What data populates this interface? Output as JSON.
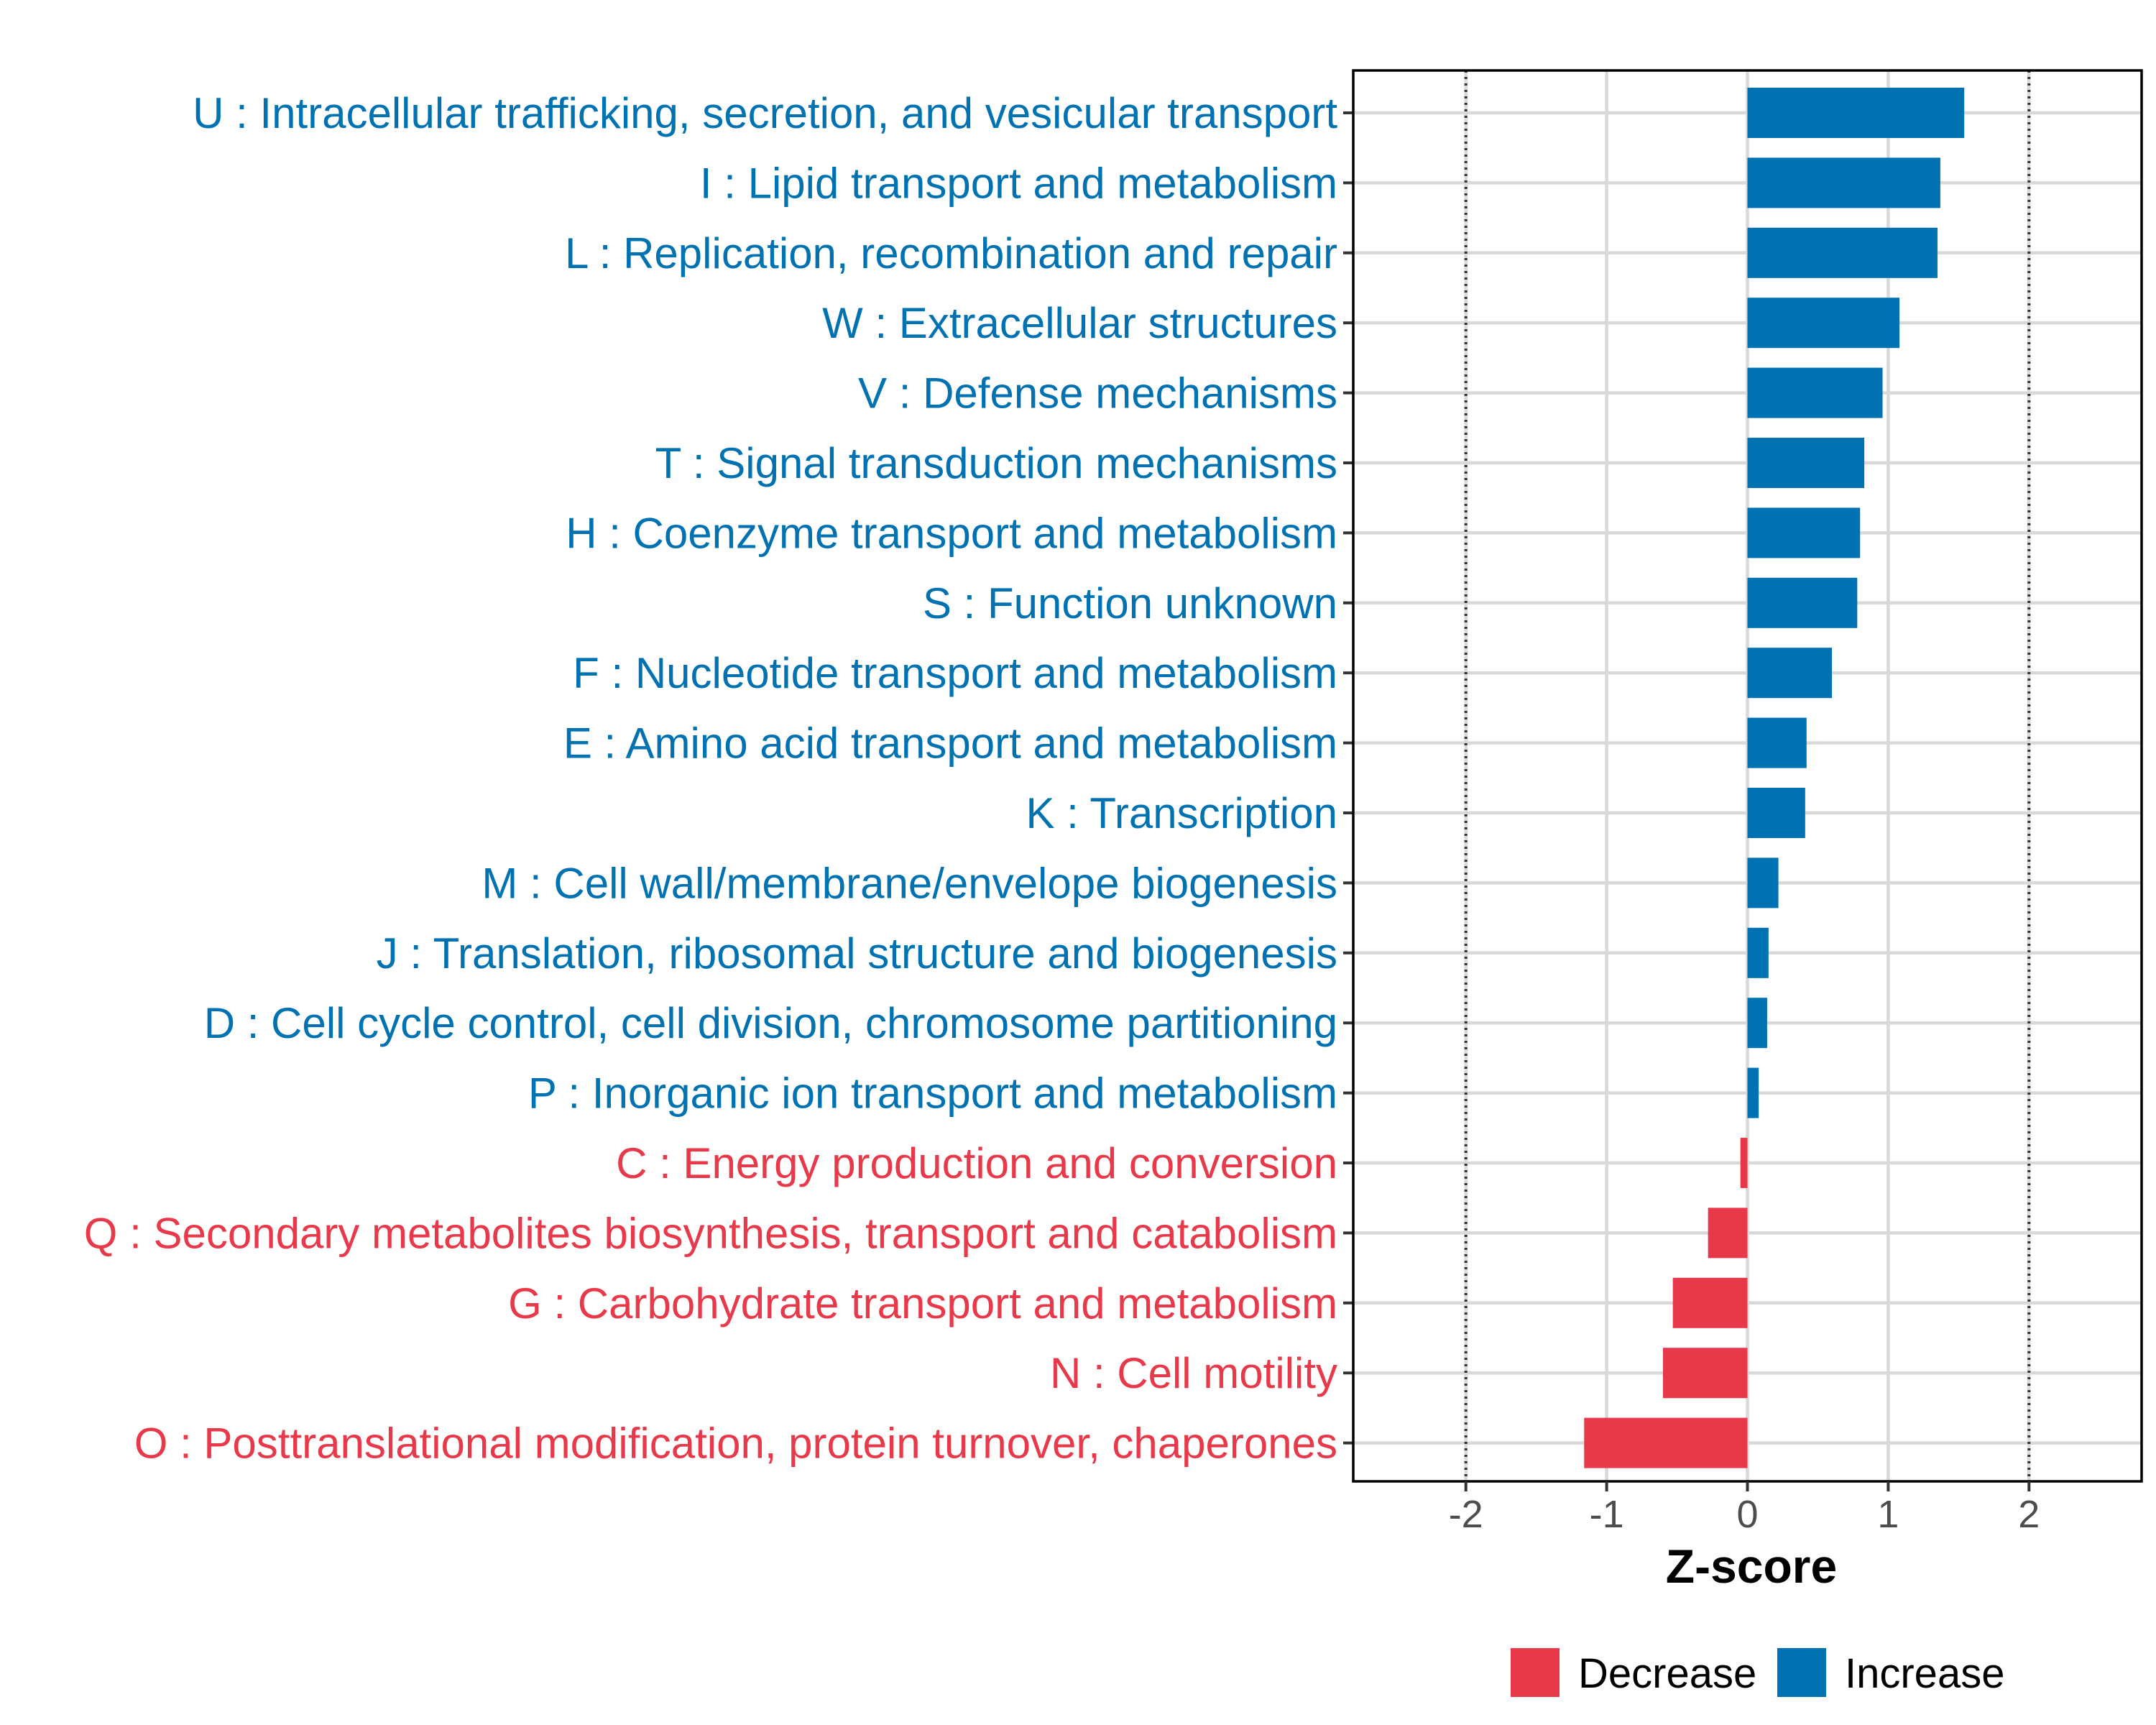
{
  "colors": {
    "increase": "#0072B2",
    "decrease": "#E8394A",
    "grid": "#d9d9d9",
    "threshold": "#333333"
  },
  "chart_data": {
    "type": "bar",
    "orientation": "horizontal",
    "xlabel": "Z-score",
    "ylabel": "",
    "xlim": [
      -2.8,
      2.8
    ],
    "xticks": [
      "-2",
      "-1",
      "0",
      "1",
      "2"
    ],
    "threshold_lines": [
      -2,
      2
    ],
    "categories": [
      "U : Intracellular trafficking, secretion, and vesicular transport",
      "I : Lipid transport and metabolism",
      "L : Replication, recombination and repair",
      "W : Extracellular structures",
      "V : Defense mechanisms",
      "T : Signal transduction mechanisms",
      "H : Coenzyme transport and metabolism",
      "S : Function unknown",
      "F : Nucleotide transport and metabolism",
      "E : Amino acid transport and metabolism",
      "K : Transcription",
      "M : Cell wall/membrane/envelope biogenesis",
      "J : Translation, ribosomal structure and biogenesis",
      "D : Cell cycle control, cell division, chromosome partitioning",
      "P : Inorganic ion transport and metabolism",
      "C : Energy production and conversion",
      "Q : Secondary metabolites biosynthesis, transport and catabolism",
      "G : Carbohydrate transport and metabolism",
      "N : Cell motility",
      "O : Posttranslational modification, protein turnover, chaperones"
    ],
    "values": [
      1.54,
      1.37,
      1.35,
      1.08,
      0.96,
      0.83,
      0.8,
      0.78,
      0.6,
      0.42,
      0.41,
      0.22,
      0.15,
      0.14,
      0.08,
      -0.05,
      -0.28,
      -0.53,
      -0.6,
      -1.16
    ],
    "groups": [
      "Increase",
      "Increase",
      "Increase",
      "Increase",
      "Increase",
      "Increase",
      "Increase",
      "Increase",
      "Increase",
      "Increase",
      "Increase",
      "Increase",
      "Increase",
      "Increase",
      "Increase",
      "Decrease",
      "Decrease",
      "Decrease",
      "Decrease",
      "Decrease"
    ],
    "legend": {
      "position": "bottom",
      "entries": [
        "Decrease",
        "Increase"
      ]
    }
  }
}
